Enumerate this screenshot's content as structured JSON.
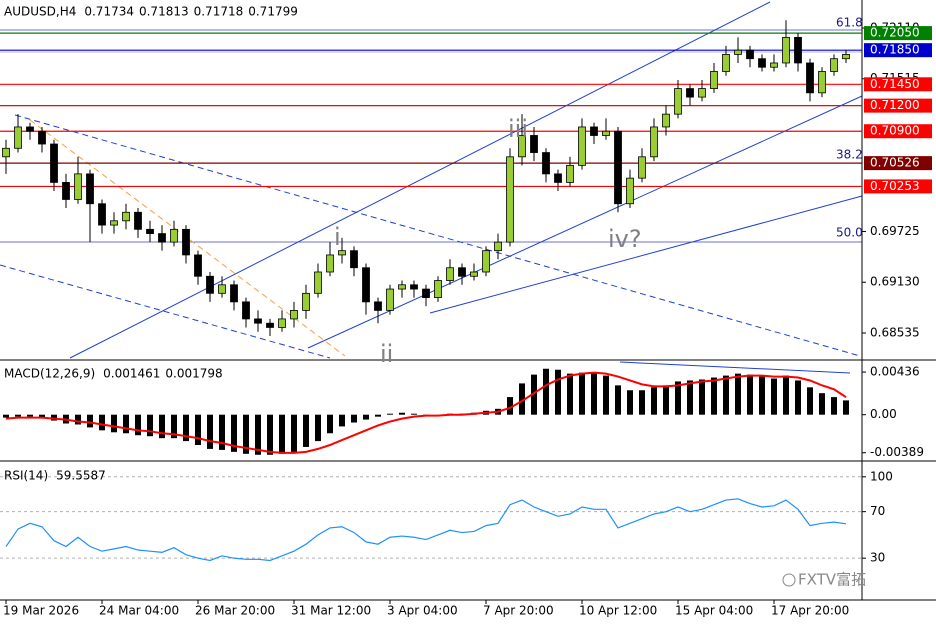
{
  "chart_data": [
    {
      "type": "candlestick",
      "title": "AUDUSD,H4",
      "title_values": [
        0.71734,
        0.71813,
        0.71718,
        0.71799
      ],
      "categories": [
        "19 Mar 2026",
        null,
        null,
        null,
        null,
        null,
        null,
        null,
        "24 Mar 04:00",
        null,
        null,
        null,
        null,
        null,
        null,
        null,
        "26 Mar 20:00",
        null,
        null,
        null,
        null,
        null,
        null,
        null,
        "31 Mar 12:00",
        null,
        null,
        null,
        null,
        null,
        null,
        null,
        "3 Apr 04:00",
        null,
        null,
        null,
        null,
        null,
        null,
        null,
        "7 Apr 20:00",
        null,
        null,
        null,
        null,
        null,
        null,
        null,
        "10 Apr 12:00",
        null,
        null,
        null,
        null,
        null,
        null,
        null,
        "15 Apr 04:00",
        null,
        null,
        null,
        null,
        null,
        null,
        null,
        "17 Apr 20:00",
        null,
        null,
        null,
        null,
        null,
        null
      ],
      "open": [
        0.706,
        0.707,
        0.7095,
        0.709,
        0.7075,
        0.703,
        0.701,
        0.704,
        0.7005,
        0.698,
        0.6985,
        0.6995,
        0.6975,
        0.697,
        0.696,
        0.6975,
        0.6945,
        0.692,
        0.69,
        0.691,
        0.689,
        0.687,
        0.6865,
        0.686,
        0.687,
        0.688,
        0.69,
        0.6925,
        0.6945,
        0.695,
        0.693,
        0.689,
        0.688,
        0.6905,
        0.691,
        0.6905,
        0.6895,
        0.6915,
        0.693,
        0.692,
        0.6925,
        0.695,
        0.696,
        0.706,
        0.7085,
        0.7065,
        0.704,
        0.703,
        0.705,
        0.7095,
        0.7085,
        0.709,
        0.7005,
        0.7035,
        0.706,
        0.7095,
        0.711,
        0.714,
        0.713,
        0.714,
        0.716,
        0.718,
        0.7185,
        0.7175,
        0.7165,
        0.717,
        0.72,
        0.717,
        0.7135,
        0.716,
        0.7175
      ],
      "high": [
        0.708,
        0.711,
        0.71,
        0.7095,
        0.708,
        0.704,
        0.706,
        0.7045,
        0.701,
        0.6995,
        0.7005,
        0.7,
        0.6985,
        0.698,
        0.6985,
        0.698,
        0.695,
        0.6925,
        0.692,
        0.6915,
        0.6895,
        0.688,
        0.687,
        0.688,
        0.689,
        0.691,
        0.6935,
        0.696,
        0.6965,
        0.6955,
        0.6935,
        0.6895,
        0.691,
        0.6915,
        0.6915,
        0.691,
        0.692,
        0.694,
        0.6935,
        0.6935,
        0.6955,
        0.697,
        0.707,
        0.711,
        0.7095,
        0.707,
        0.7045,
        0.706,
        0.7105,
        0.71,
        0.7105,
        0.7095,
        0.7045,
        0.707,
        0.7105,
        0.712,
        0.715,
        0.7145,
        0.715,
        0.717,
        0.719,
        0.72,
        0.719,
        0.718,
        0.718,
        0.722,
        0.7205,
        0.7175,
        0.7165,
        0.718,
        0.7185
      ],
      "low": [
        0.704,
        0.7065,
        0.708,
        0.7065,
        0.702,
        0.7,
        0.7005,
        0.696,
        0.697,
        0.697,
        0.6975,
        0.6965,
        0.696,
        0.695,
        0.6955,
        0.6935,
        0.691,
        0.689,
        0.6895,
        0.688,
        0.686,
        0.6855,
        0.685,
        0.6855,
        0.686,
        0.687,
        0.6895,
        0.692,
        0.6935,
        0.692,
        0.6875,
        0.6865,
        0.6875,
        0.6895,
        0.6895,
        0.6885,
        0.689,
        0.691,
        0.691,
        0.6915,
        0.692,
        0.694,
        0.6955,
        0.705,
        0.7055,
        0.703,
        0.702,
        0.7025,
        0.7045,
        0.7075,
        0.708,
        0.6995,
        0.7,
        0.703,
        0.7055,
        0.7085,
        0.7105,
        0.712,
        0.7125,
        0.7135,
        0.7155,
        0.717,
        0.7165,
        0.716,
        0.716,
        0.7165,
        0.716,
        0.7125,
        0.713,
        0.7155,
        0.717
      ],
      "close": [
        0.707,
        0.7095,
        0.709,
        0.7075,
        0.703,
        0.701,
        0.704,
        0.7005,
        0.698,
        0.6985,
        0.6995,
        0.6975,
        0.697,
        0.696,
        0.6975,
        0.6945,
        0.692,
        0.69,
        0.691,
        0.689,
        0.687,
        0.6865,
        0.686,
        0.687,
        0.688,
        0.69,
        0.6925,
        0.6945,
        0.695,
        0.693,
        0.689,
        0.688,
        0.6905,
        0.691,
        0.6905,
        0.6895,
        0.6915,
        0.693,
        0.692,
        0.6925,
        0.695,
        0.696,
        0.706,
        0.7085,
        0.7065,
        0.704,
        0.703,
        0.705,
        0.7095,
        0.7085,
        0.709,
        0.7005,
        0.7035,
        0.706,
        0.7095,
        0.711,
        0.714,
        0.713,
        0.714,
        0.716,
        0.718,
        0.7185,
        0.7175,
        0.7165,
        0.717,
        0.72,
        0.717,
        0.7135,
        0.716,
        0.7175,
        0.718
      ],
      "up_color": "#9acd32",
      "down_color": "#000000",
      "ylim": [
        0.68242,
        0.72438
      ],
      "yticks": [
        {
          "value": 0.7211,
          "label": "0.72110"
        },
        0.71515,
        0.69725,
        {
          "value": 0.6913,
          "label": "0.69130"
        },
        0.68535
      ],
      "levels": [
        {
          "value": 0.7205,
          "label": "0.72050",
          "color": "#008000"
        },
        {
          "value": 0.7185,
          "label": "0.71850",
          "color": "#0000cd"
        },
        {
          "value": 0.7145,
          "label": "0.71450",
          "color": "#ff0000"
        },
        {
          "value": 0.712,
          "label": "0.71200",
          "color": "#ff0000"
        },
        {
          "value": 0.709,
          "label": "0.70900",
          "color": "#ff0000"
        },
        {
          "value": 0.70526,
          "color": "#800000"
        },
        {
          "value": 0.70253,
          "color": "#ff0000"
        }
      ],
      "fib_labels": [
        "61.8",
        "38.2",
        "50.0"
      ],
      "wave_labels": [
        "i",
        "ii",
        "iii",
        "iv?"
      ],
      "watermark": "FXTV富拓"
    },
    {
      "type": "bar",
      "title": "MACD(12,26,9)",
      "title_values": [
        0.001461,
        0.001798
      ],
      "values": [
        -0.0003,
        -0.0002,
        -0.0002,
        -0.0003,
        -0.0006,
        -0.0009,
        -0.001,
        -0.0013,
        -0.0016,
        -0.0018,
        -0.0019,
        -0.0021,
        -0.0022,
        -0.0024,
        -0.0024,
        -0.0027,
        -0.0031,
        -0.0035,
        -0.0036,
        -0.0038,
        -0.004,
        -0.0041,
        -0.0041,
        -0.004,
        -0.0038,
        -0.0033,
        -0.0027,
        -0.0019,
        -0.0012,
        -0.0008,
        -0.0005,
        -0.0002,
        0.0001,
        0.0002,
        0.0001,
        -0.0001,
        0.0,
        0.0001,
        0.0001,
        0.0002,
        0.0004,
        0.0006,
        0.0018,
        0.0032,
        0.0041,
        0.0047,
        0.0046,
        0.0042,
        0.0043,
        0.0043,
        0.004,
        0.003,
        0.0025,
        0.0025,
        0.0028,
        0.003,
        0.0034,
        0.0035,
        0.0036,
        0.0038,
        0.004,
        0.0042,
        0.0041,
        0.0039,
        0.0037,
        0.004,
        0.0035,
        0.0028,
        0.0022,
        0.0018,
        0.001461
      ],
      "color": "#000000",
      "signal": {
        "color": "#ff0000",
        "values": [
          -0.0004,
          -0.0003,
          -0.0003,
          -0.0003,
          -0.0004,
          -0.0005,
          -0.0007,
          -0.0008,
          -0.001,
          -0.0012,
          -0.0014,
          -0.0016,
          -0.0017,
          -0.0019,
          -0.002,
          -0.0022,
          -0.0024,
          -0.0027,
          -0.0029,
          -0.0032,
          -0.0034,
          -0.0036,
          -0.0038,
          -0.0039,
          -0.0039,
          -0.0038,
          -0.0035,
          -0.0031,
          -0.0026,
          -0.0021,
          -0.0016,
          -0.0011,
          -0.0007,
          -0.0004,
          -0.0002,
          -0.0001,
          -0.0001,
          0.0,
          0.0,
          0.0001,
          0.0002,
          0.0003,
          0.0007,
          0.0014,
          0.0022,
          0.003,
          0.0036,
          0.004,
          0.0042,
          0.0043,
          0.0042,
          0.0039,
          0.0035,
          0.0031,
          0.0029,
          0.0029,
          0.003,
          0.0032,
          0.0034,
          0.0035,
          0.0037,
          0.0039,
          0.004,
          0.004,
          0.0039,
          0.0039,
          0.0038,
          0.0035,
          0.003,
          0.0026,
          0.001798
        ]
      },
      "ylim": [
        -0.00443,
        0.00539
      ],
      "yticks": [
        0.00436,
        {
          "value": 0,
          "label": "0.00"
        },
        -0.00389
      ]
    },
    {
      "type": "line",
      "title": "RSI(14)",
      "title_values": [
        59.5587
      ],
      "values": [
        40,
        55,
        60,
        57,
        45,
        40,
        48,
        40,
        36,
        38,
        40,
        37,
        36,
        35,
        39,
        33,
        30,
        28,
        32,
        30,
        29,
        29,
        28,
        32,
        36,
        42,
        50,
        56,
        57,
        52,
        44,
        42,
        48,
        49,
        48,
        46,
        50,
        54,
        52,
        53,
        58,
        60,
        76,
        80,
        74,
        70,
        66,
        68,
        74,
        72,
        72,
        56,
        60,
        64,
        68,
        70,
        74,
        70,
        72,
        76,
        80,
        81,
        77,
        74,
        75,
        80,
        72,
        58,
        60,
        61,
        59.5587
      ],
      "color": "#1e90ff",
      "ylim": [
        -6,
        111
      ],
      "yticks": [
        30,
        70,
        100
      ]
    }
  ]
}
